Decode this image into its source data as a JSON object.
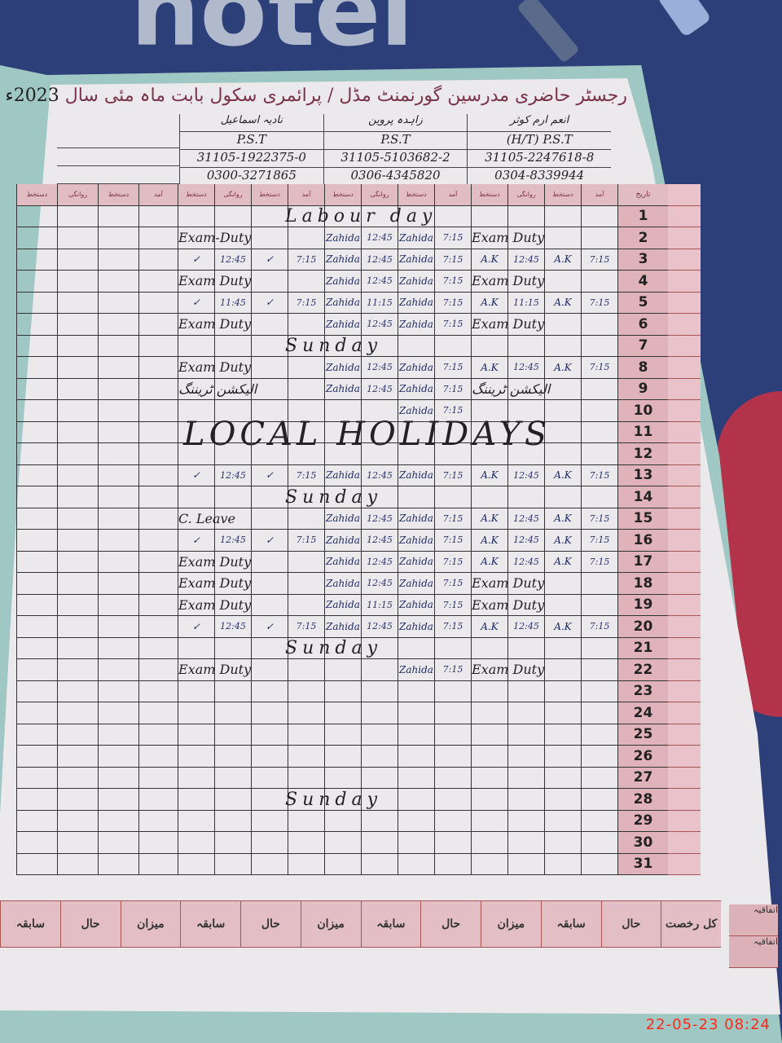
{
  "register": {
    "title": "رجسٹر حاضری مدرسین گورنمنٹ مڈل / پرائمری سکول بابت ماہ مئی سال",
    "year": "2023ء",
    "teachers": [
      {
        "name": "انعم ارم کوثر",
        "designation": "(H/T) P.S.T",
        "cnic": "31105-2247618-8",
        "phone": "0304-8339944"
      },
      {
        "name": "زاہدہ پروین",
        "designation": "P.S.T",
        "cnic": "31105-5103682-2",
        "phone": "0306-4345820"
      },
      {
        "name": "نادیہ اسماعیل",
        "designation": "P.S.T",
        "cnic": "31105-1922375-0",
        "phone": "0300-3271865"
      }
    ],
    "column_headers": [
      "دستخط",
      "روانگی",
      "دستخط",
      "آمد",
      "دستخط",
      "روانگی",
      "دستخط",
      "آمد",
      "دستخط",
      "روانگی",
      "دستخط",
      "آمد",
      "دستخط",
      "روانگی",
      "دستخط",
      "آمد"
    ],
    "day_header": "تاریخ"
  },
  "rows": [
    {
      "day": "1",
      "span": "Labour day"
    },
    {
      "day": "2",
      "cells": [
        "Exam-Duty",
        "",
        "",
        "",
        "Zahida",
        "12:45",
        "Zahida",
        "7:15",
        "Exam Duty",
        "",
        "",
        ""
      ]
    },
    {
      "day": "3",
      "cells": [
        "✓",
        "12:45",
        "✓",
        "7:15",
        "Zahida",
        "12:45",
        "Zahida",
        "7:15",
        "A.K",
        "12:45",
        "A.K",
        "7:15"
      ]
    },
    {
      "day": "4",
      "cells": [
        "Exam Duty",
        "",
        "",
        "",
        "Zahida",
        "12:45",
        "Zahida",
        "7:15",
        "Exam Duty",
        "",
        "",
        ""
      ]
    },
    {
      "day": "5",
      "cells": [
        "✓",
        "11:45",
        "✓",
        "7:15",
        "Zahida",
        "11:15",
        "Zahida",
        "7:15",
        "A.K",
        "11:15",
        "A.K",
        "7:15"
      ]
    },
    {
      "day": "6",
      "cells": [
        "Exam Duty",
        "",
        "",
        "",
        "Zahida",
        "12:45",
        "Zahida",
        "7:15",
        "Exam Duty",
        "",
        "",
        ""
      ]
    },
    {
      "day": "7",
      "span": "Sunday"
    },
    {
      "day": "8",
      "cells": [
        "Exam Duty",
        "",
        "",
        "",
        "Zahida",
        "12:45",
        "Zahida",
        "7:15",
        "A.K",
        "12:45",
        "A.K",
        "7:15"
      ]
    },
    {
      "day": "9",
      "cells": [
        "الیکشن ٹریننگ",
        "",
        "",
        "",
        "Zahida",
        "12:45",
        "Zahida",
        "7:15",
        "الیکشن ٹریننگ",
        "",
        "",
        ""
      ]
    },
    {
      "day": "10",
      "cells": [
        "",
        "",
        "",
        "",
        "",
        "",
        "Zahida",
        "7:15",
        "",
        "",
        "",
        ""
      ]
    },
    {
      "day": "11",
      "span": "LOCAL HOLIDAYS",
      "big": true
    },
    {
      "day": "12"
    },
    {
      "day": "13",
      "cells": [
        "✓",
        "12:45",
        "✓",
        "7:15",
        "Zahida",
        "12:45",
        "Zahida",
        "7:15",
        "A.K",
        "12:45",
        "A.K",
        "7:15"
      ]
    },
    {
      "day": "14",
      "span": "Sunday"
    },
    {
      "day": "15",
      "cells": [
        "C. Leave",
        "",
        "",
        "",
        "Zahida",
        "12:45",
        "Zahida",
        "7:15",
        "A.K",
        "12:45",
        "A.K",
        "7:15"
      ]
    },
    {
      "day": "16",
      "cells": [
        "✓",
        "12:45",
        "✓",
        "7:15",
        "Zahida",
        "12:45",
        "Zahida",
        "7:15",
        "A.K",
        "12:45",
        "A.K",
        "7:15"
      ]
    },
    {
      "day": "17",
      "cells": [
        "Exam Duty",
        "",
        "",
        "",
        "Zahida",
        "12:45",
        "Zahida",
        "7:15",
        "A.K",
        "12:45",
        "A.K",
        "7:15"
      ]
    },
    {
      "day": "18",
      "cells": [
        "Exam Duty",
        "",
        "",
        "",
        "Zahida",
        "12:45",
        "Zahida",
        "7:15",
        "Exam Duty",
        "",
        "",
        ""
      ]
    },
    {
      "day": "19",
      "cells": [
        "Exam Duty",
        "",
        "",
        "",
        "Zahida",
        "11:15",
        "Zahida",
        "7:15",
        "Exam Duty",
        "",
        "",
        ""
      ]
    },
    {
      "day": "20",
      "cells": [
        "✓",
        "12:45",
        "✓",
        "7:15",
        "Zahida",
        "12:45",
        "Zahida",
        "7:15",
        "A.K",
        "12:45",
        "A.K",
        "7:15"
      ]
    },
    {
      "day": "21",
      "span": "Sunday"
    },
    {
      "day": "22",
      "cells": [
        "Exam Duty",
        "",
        "",
        "",
        "",
        "",
        "Zahida",
        "7:15",
        "Exam Duty",
        "",
        "",
        ""
      ]
    },
    {
      "day": "23"
    },
    {
      "day": "24"
    },
    {
      "day": "25"
    },
    {
      "day": "26"
    },
    {
      "day": "27"
    },
    {
      "day": "28",
      "span": "Sunday"
    },
    {
      "day": "29"
    },
    {
      "day": "30"
    },
    {
      "day": "31"
    }
  ],
  "footer": {
    "labels": [
      "کل رخصت",
      "حال",
      "سابقہ",
      "میزان",
      "حال",
      "سابقہ",
      "میزان",
      "حال",
      "سابقہ",
      "میزان",
      "حال",
      "سابقہ"
    ],
    "side": [
      "اتفاقیہ",
      "اتفاقیہ"
    ]
  },
  "camera_timestamp": "22-05-23  08:24",
  "colors": {
    "paper": "#ece9ec",
    "ruling_pink": "#e0b2b9",
    "ink_blue": "#2a3270",
    "timestamp": "#ff2a1a"
  }
}
